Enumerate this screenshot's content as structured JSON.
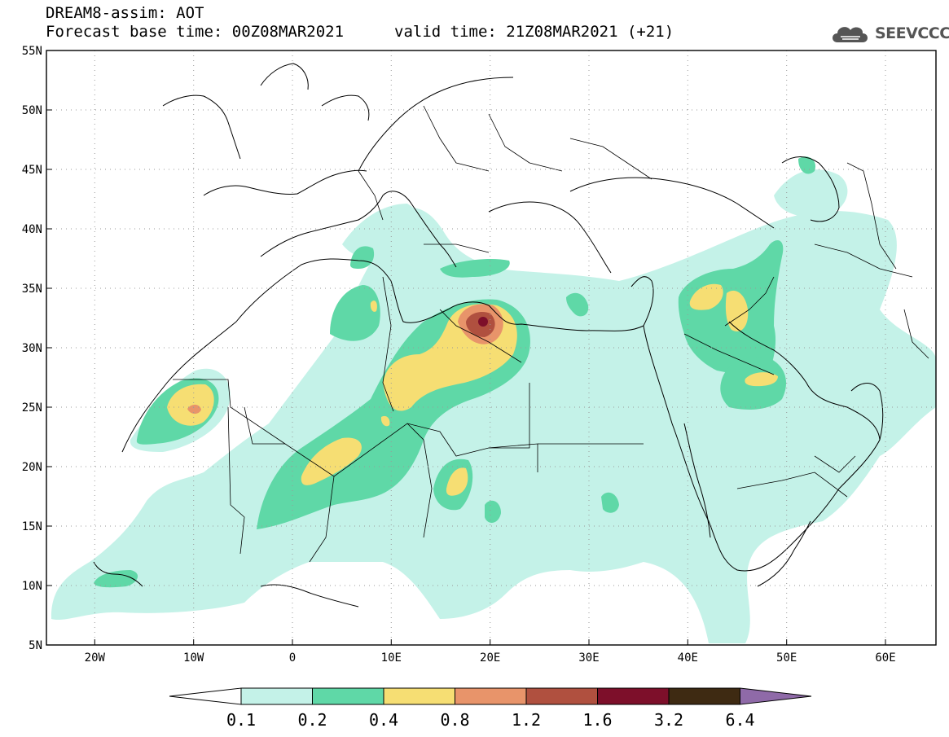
{
  "header": {
    "line1": "DREAM8-assim: AOT",
    "line2": "Forecast base time: 00Z08MAR2021",
    "line3": "valid time: 21Z08MAR2021 (+21)"
  },
  "logo": {
    "text": "SEEVCCC",
    "icon": "cloud-icon"
  },
  "axes": {
    "lat_labels": [
      "55N",
      "50N",
      "45N",
      "40N",
      "35N",
      "30N",
      "25N",
      "20N",
      "15N",
      "10N",
      "5N"
    ],
    "lon_labels": [
      "20W",
      "10W",
      "0",
      "10E",
      "20E",
      "30E",
      "40E",
      "50E",
      "60E"
    ],
    "lon_range": [
      -25,
      65
    ],
    "lat_range": [
      5,
      55
    ]
  },
  "colorbar": {
    "labels": [
      "0.1",
      "0.2",
      "0.4",
      "0.8",
      "1.2",
      "1.6",
      "3.2",
      "6.4"
    ],
    "colors": [
      "#ffffff",
      "#c4f2e8",
      "#5fd8a7",
      "#f6de73",
      "#e8946a",
      "#b0503f",
      "#7d0f2a",
      "#3e2a12",
      "#8f6aa8"
    ]
  },
  "colors": {
    "level1": "#c4f2e8",
    "level2": "#5fd8a7",
    "level3": "#f6de73",
    "level4": "#e8946a",
    "level5": "#b0503f",
    "level6": "#7d0f2a"
  }
}
